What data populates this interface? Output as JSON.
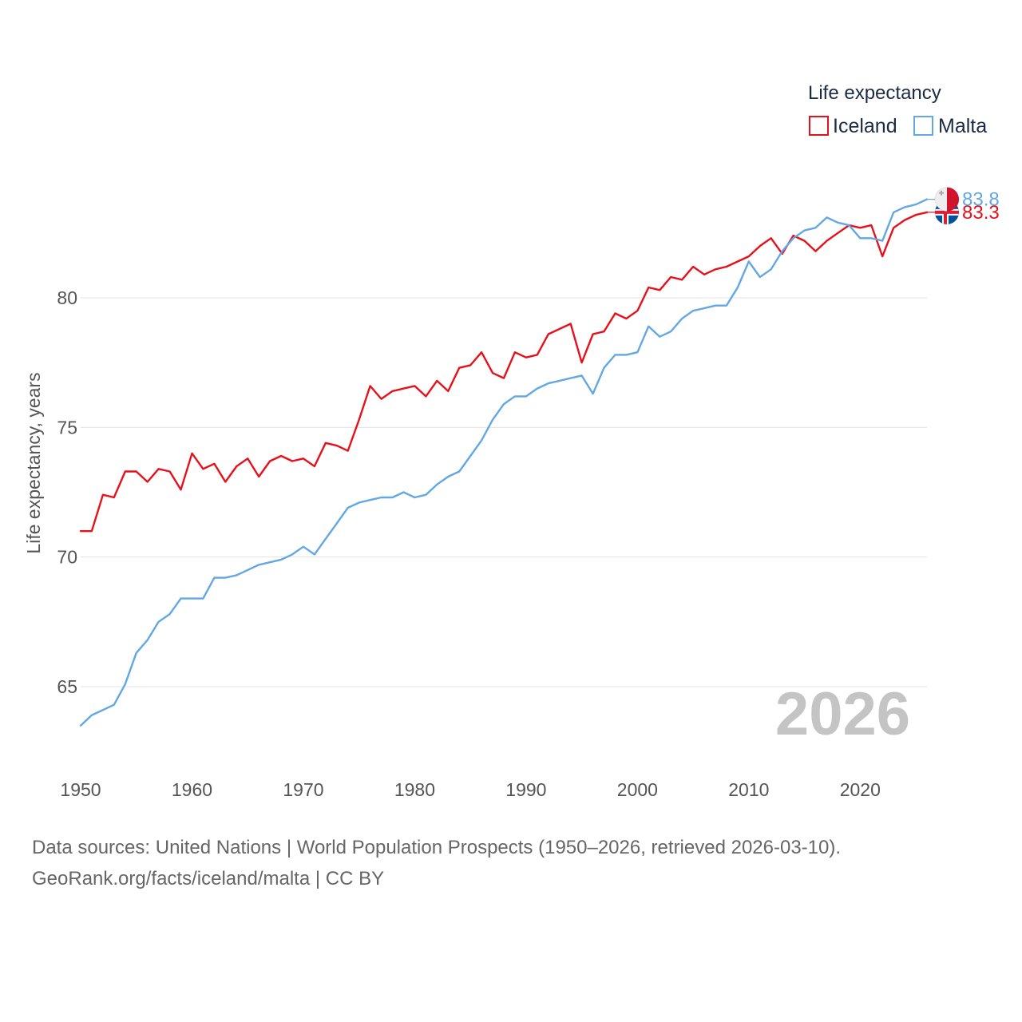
{
  "chart_data": {
    "type": "line",
    "ylabel": "Life expectancy, years",
    "xlabel": "",
    "xlim": [
      1950,
      2026
    ],
    "ylim": [
      62.5,
      85
    ],
    "x_ticks": [
      1950,
      1960,
      1970,
      1980,
      1990,
      2000,
      2010,
      2020
    ],
    "y_ticks": [
      65,
      70,
      75,
      80
    ],
    "grid": true,
    "legend": {
      "title": "Life expectancy",
      "position": "top-right"
    },
    "current_year": "2026",
    "x": [
      1950,
      1951,
      1952,
      1953,
      1954,
      1955,
      1956,
      1957,
      1958,
      1959,
      1960,
      1961,
      1962,
      1963,
      1964,
      1965,
      1966,
      1967,
      1968,
      1969,
      1970,
      1971,
      1972,
      1973,
      1974,
      1975,
      1976,
      1977,
      1978,
      1979,
      1980,
      1981,
      1982,
      1983,
      1984,
      1985,
      1986,
      1987,
      1988,
      1989,
      1990,
      1991,
      1992,
      1993,
      1994,
      1995,
      1996,
      1997,
      1998,
      1999,
      2000,
      2001,
      2002,
      2003,
      2004,
      2005,
      2006,
      2007,
      2008,
      2009,
      2010,
      2011,
      2012,
      2013,
      2014,
      2015,
      2016,
      2017,
      2018,
      2019,
      2020,
      2021,
      2022,
      2023,
      2024,
      2025,
      2026
    ],
    "series": [
      {
        "name": "Iceland",
        "color": "#e8101a",
        "end_label": "83.3",
        "flag": "iceland-flag-icon",
        "values": [
          71.0,
          71.0,
          72.4,
          72.3,
          73.3,
          73.3,
          72.9,
          73.4,
          73.3,
          72.6,
          74.0,
          73.4,
          73.6,
          72.9,
          73.5,
          73.8,
          73.1,
          73.7,
          73.9,
          73.7,
          73.8,
          73.5,
          74.4,
          74.3,
          74.1,
          75.3,
          76.6,
          76.1,
          76.4,
          76.5,
          76.6,
          76.2,
          76.8,
          76.4,
          77.3,
          77.4,
          77.9,
          77.1,
          76.9,
          77.9,
          77.7,
          77.8,
          78.6,
          78.8,
          79.0,
          77.5,
          78.6,
          78.7,
          79.4,
          79.2,
          79.5,
          80.4,
          80.3,
          80.8,
          80.7,
          81.2,
          80.9,
          81.1,
          81.2,
          81.4,
          81.6,
          82.0,
          82.3,
          81.7,
          82.4,
          82.2,
          81.8,
          82.2,
          82.5,
          82.8,
          82.7,
          82.8,
          81.6,
          82.7,
          83.0,
          83.2,
          83.3
        ]
      },
      {
        "name": "Malta",
        "color": "#63a7e3",
        "end_label": "83.8",
        "flag": "malta-flag-icon",
        "values": [
          63.5,
          63.9,
          64.1,
          64.3,
          65.1,
          66.3,
          66.8,
          67.5,
          67.8,
          68.4,
          68.4,
          68.4,
          69.2,
          69.2,
          69.3,
          69.5,
          69.7,
          69.8,
          69.9,
          70.1,
          70.4,
          70.1,
          70.7,
          71.3,
          71.9,
          72.1,
          72.2,
          72.3,
          72.3,
          72.5,
          72.3,
          72.4,
          72.8,
          73.1,
          73.3,
          73.9,
          74.5,
          75.3,
          75.9,
          76.2,
          76.2,
          76.5,
          76.7,
          76.8,
          76.9,
          77.0,
          76.3,
          77.3,
          77.8,
          77.8,
          77.9,
          78.9,
          78.5,
          78.7,
          79.2,
          79.5,
          79.6,
          79.7,
          79.7,
          80.4,
          81.4,
          80.8,
          81.1,
          81.8,
          82.3,
          82.6,
          82.7,
          83.1,
          82.9,
          82.8,
          82.3,
          82.3,
          82.2,
          83.3,
          83.5,
          83.6,
          83.8
        ]
      }
    ]
  },
  "footer": {
    "line1": "Data sources: United Nations | World Population Prospects (1950–2026, retrieved 2026-03-10).",
    "line2": "GeoRank.org/facts/iceland/malta | CC BY"
  }
}
